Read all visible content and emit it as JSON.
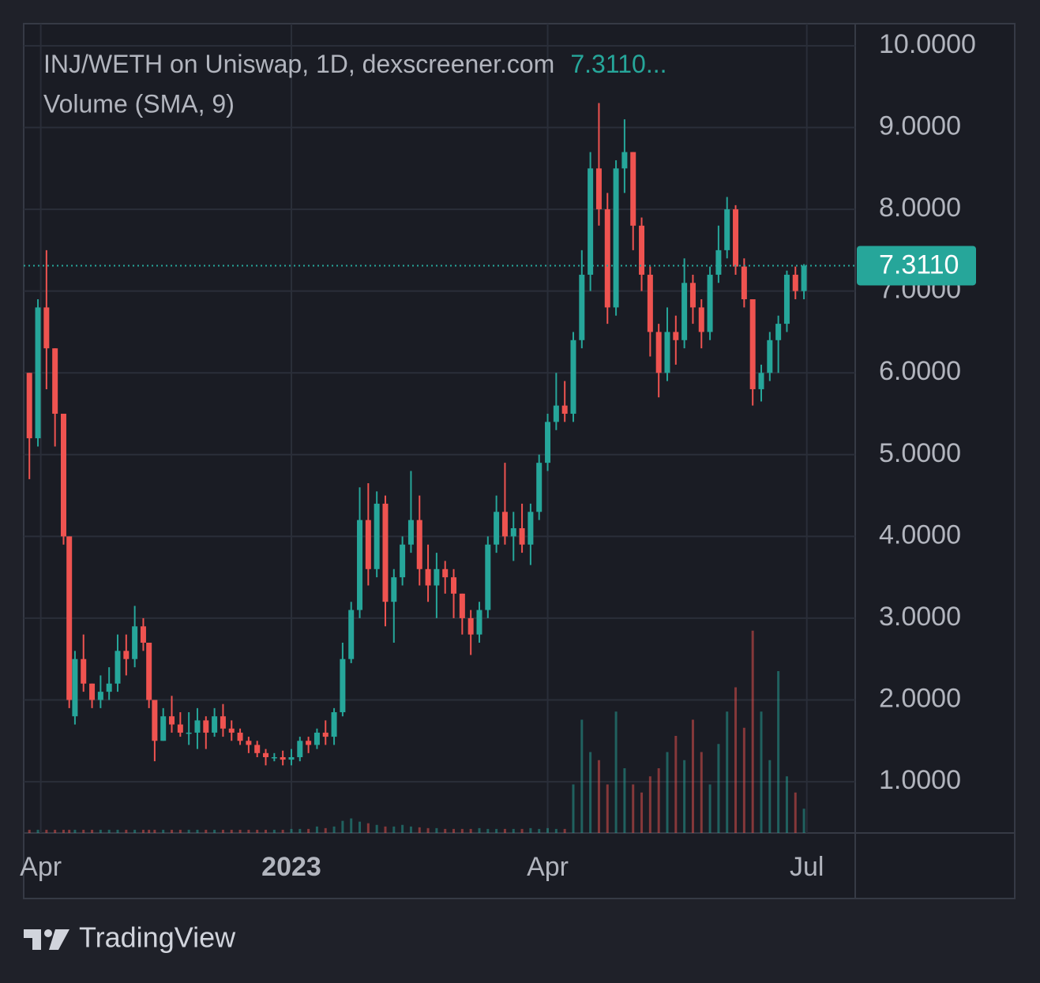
{
  "chart_data": {
    "type": "candlestick",
    "title": "INJ/WETH on Uniswap, 1D, dexscreener.com",
    "legend_price": "7.3110...",
    "volume_title": "Volume (SMA, 9)",
    "brand": "TradingView",
    "up_color": "#26a69a",
    "down_color": "#ef5350",
    "x": [
      -92,
      -89,
      -86,
      -83,
      -80,
      -78,
      -76,
      -73,
      -70,
      -67,
      -64,
      -61,
      -58,
      -55,
      -52,
      -50,
      -48,
      -45,
      -42,
      -39,
      -36,
      -33,
      -30,
      -27,
      -24,
      -21,
      -18,
      -15,
      -12,
      -9,
      -6,
      -3,
      0,
      3,
      6,
      9,
      12,
      15,
      18,
      21,
      24,
      27,
      30,
      33,
      36,
      39,
      42,
      45,
      48,
      51,
      54,
      57,
      60,
      63,
      66,
      69,
      72,
      75,
      78,
      81,
      84,
      87,
      90,
      93,
      96,
      99,
      102,
      105,
      108,
      111,
      114,
      117,
      120,
      123,
      126,
      129,
      132,
      135,
      138,
      141,
      144,
      147,
      150,
      153,
      156,
      159,
      162,
      165,
      168,
      171,
      174,
      177,
      180
    ],
    "open": [
      6.0,
      5.2,
      6.8,
      6.3,
      5.5,
      4.0,
      1.8,
      2.5,
      2.2,
      2.0,
      2.1,
      2.2,
      2.6,
      2.5,
      2.9,
      2.7,
      2.0,
      1.5,
      1.8,
      1.7,
      1.6,
      1.6,
      1.75,
      1.6,
      1.8,
      1.65,
      1.6,
      1.5,
      1.45,
      1.35,
      1.3,
      1.3,
      1.27,
      1.3,
      1.5,
      1.45,
      1.6,
      1.55,
      1.85,
      2.5,
      3.1,
      4.2,
      3.6,
      4.4,
      3.2,
      3.5,
      3.9,
      4.2,
      3.6,
      3.4,
      3.6,
      3.5,
      3.3,
      3.0,
      2.8,
      3.1,
      3.9,
      4.3,
      4.0,
      4.1,
      3.9,
      4.3,
      4.9,
      5.4,
      5.6,
      5.5,
      6.4,
      7.2,
      8.5,
      8.0,
      6.8,
      8.5,
      8.7,
      7.8,
      7.2,
      6.5,
      6.0,
      6.5,
      6.4,
      7.1,
      6.8,
      6.5,
      7.2,
      7.5,
      8.0,
      7.3,
      6.9,
      5.8,
      6.0,
      6.4,
      6.6,
      7.2,
      7.0
    ],
    "high": [
      6.0,
      6.9,
      7.5,
      6.3,
      5.5,
      4.0,
      2.6,
      2.8,
      2.2,
      2.3,
      2.4,
      2.8,
      2.8,
      3.15,
      3.0,
      2.7,
      2.0,
      1.9,
      2.05,
      1.85,
      1.85,
      1.9,
      1.8,
      1.9,
      1.95,
      1.75,
      1.65,
      1.55,
      1.5,
      1.4,
      1.35,
      1.38,
      1.4,
      1.55,
      1.55,
      1.65,
      1.75,
      1.9,
      2.7,
      3.2,
      4.6,
      4.65,
      4.55,
      4.5,
      3.6,
      4.0,
      4.8,
      4.5,
      3.9,
      3.8,
      3.7,
      3.6,
      3.3,
      3.1,
      3.2,
      4.0,
      4.5,
      4.9,
      4.3,
      4.4,
      4.4,
      5.0,
      5.5,
      6.0,
      5.9,
      6.5,
      7.5,
      8.7,
      9.3,
      8.2,
      8.6,
      9.1,
      8.7,
      7.9,
      7.3,
      6.6,
      6.8,
      6.7,
      7.4,
      7.2,
      6.9,
      7.3,
      7.8,
      8.15,
      8.05,
      7.4,
      6.9,
      6.1,
      6.5,
      6.7,
      7.25,
      7.3,
      7.33
    ],
    "low": [
      4.7,
      5.1,
      5.8,
      5.1,
      3.9,
      1.9,
      1.7,
      2.1,
      1.9,
      1.9,
      2.0,
      2.1,
      2.3,
      2.4,
      2.6,
      1.9,
      1.25,
      1.5,
      1.6,
      1.55,
      1.45,
      1.4,
      1.4,
      1.55,
      1.55,
      1.5,
      1.45,
      1.35,
      1.3,
      1.2,
      1.25,
      1.2,
      1.2,
      1.25,
      1.35,
      1.4,
      1.45,
      1.45,
      1.8,
      2.45,
      3.0,
      3.4,
      3.5,
      2.9,
      2.7,
      3.4,
      3.8,
      3.4,
      3.2,
      3.0,
      3.3,
      3.0,
      2.8,
      2.55,
      2.7,
      3.0,
      3.8,
      3.9,
      3.7,
      3.8,
      3.65,
      4.2,
      4.8,
      5.3,
      5.4,
      5.4,
      6.3,
      7.0,
      7.8,
      6.6,
      6.7,
      8.2,
      7.5,
      7.0,
      6.2,
      5.7,
      5.9,
      6.1,
      6.3,
      6.6,
      6.3,
      6.4,
      7.1,
      7.4,
      7.2,
      6.8,
      5.6,
      5.65,
      5.9,
      6.0,
      6.5,
      6.9,
      6.9
    ],
    "close": [
      5.2,
      6.8,
      6.3,
      5.5,
      4.0,
      2.0,
      2.5,
      2.2,
      2.0,
      2.1,
      2.2,
      2.6,
      2.5,
      2.9,
      2.7,
      2.0,
      1.5,
      1.8,
      1.7,
      1.6,
      1.6,
      1.75,
      1.6,
      1.8,
      1.65,
      1.6,
      1.5,
      1.45,
      1.35,
      1.3,
      1.3,
      1.27,
      1.3,
      1.5,
      1.45,
      1.6,
      1.55,
      1.85,
      2.5,
      3.1,
      4.2,
      3.6,
      4.4,
      3.2,
      3.5,
      3.9,
      4.2,
      3.6,
      3.4,
      3.6,
      3.5,
      3.3,
      3.0,
      2.8,
      3.1,
      3.9,
      4.3,
      4.0,
      4.1,
      3.9,
      4.3,
      4.9,
      5.4,
      5.6,
      5.5,
      6.4,
      7.2,
      8.5,
      8.0,
      6.8,
      8.5,
      8.7,
      7.8,
      7.2,
      6.5,
      6.0,
      6.5,
      6.4,
      7.1,
      6.8,
      6.5,
      7.2,
      7.5,
      8.0,
      7.3,
      6.9,
      5.8,
      6.0,
      6.4,
      6.6,
      7.2,
      7.0,
      7.311
    ],
    "volume": [
      4,
      4,
      4,
      4,
      4,
      4,
      4,
      4,
      4,
      4,
      4,
      4,
      4,
      4,
      4,
      4,
      4,
      4,
      4,
      4,
      4,
      4,
      4,
      4,
      4,
      4,
      4,
      4,
      4,
      4,
      4,
      4,
      5,
      5,
      5,
      8,
      6,
      8,
      15,
      18,
      14,
      12,
      10,
      8,
      8,
      10,
      8,
      7,
      6,
      6,
      5,
      5,
      5,
      5,
      6,
      5,
      5,
      5,
      5,
      5,
      6,
      5,
      6,
      5,
      5,
      60,
      140,
      100,
      90,
      60,
      150,
      80,
      60,
      50,
      70,
      80,
      100,
      120,
      90,
      140,
      100,
      60,
      110,
      150,
      180,
      130,
      250,
      150,
      90,
      200,
      70,
      50,
      30
    ],
    "volume_ylim": [
      0,
      1000
    ],
    "last_price": {
      "value": 7.311,
      "label": "7.3110"
    },
    "xlim": [
      -94,
      198
    ],
    "xticks": [
      {
        "value": -88,
        "label": "Apr"
      },
      {
        "value": 0,
        "label": "2023"
      },
      {
        "value": 90,
        "label": "Apr"
      },
      {
        "value": 181,
        "label": "Jul"
      }
    ],
    "ylim": [
      0.373,
      10.27
    ],
    "yticks": [
      {
        "value": 1,
        "label": "1.0000"
      },
      {
        "value": 2,
        "label": "2.0000"
      },
      {
        "value": 3,
        "label": "3.0000"
      },
      {
        "value": 4,
        "label": "4.0000"
      },
      {
        "value": 5,
        "label": "5.0000"
      },
      {
        "value": 6,
        "label": "6.0000"
      },
      {
        "value": 7,
        "label": "7.0000"
      },
      {
        "value": 8,
        "label": "8.0000"
      },
      {
        "value": 9,
        "label": "9.0000"
      },
      {
        "value": 10,
        "label": "10.0000"
      }
    ],
    "grid": true
  }
}
